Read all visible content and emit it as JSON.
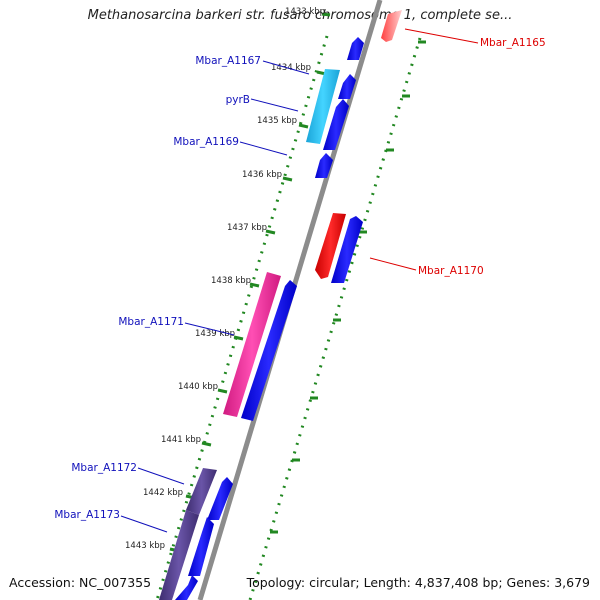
{
  "title": "Methanosarcina barkeri str. fusaro chromosome 1, complete se...",
  "footer": {
    "accession": "Accession: NC_007355",
    "summary": "Topology: circular; Length: 4,837,408 bp; Genes: 3,679"
  },
  "scale": {
    "unit": "kbp",
    "ticks": [
      "1433 kbp",
      "1434 kbp",
      "1435 kbp",
      "1436 kbp",
      "1437 kbp",
      "1438 kbp",
      "1439 kbp",
      "1440 kbp",
      "1441 kbp",
      "1442 kbp",
      "1443 kbp"
    ]
  },
  "genes": [
    {
      "name": "Mbar_A1165",
      "color": "#dd0000"
    },
    {
      "name": "Mbar_A1167",
      "color": "#1111bb"
    },
    {
      "name": "pyrB",
      "color": "#1111bb"
    },
    {
      "name": "Mbar_A1169",
      "color": "#1111bb"
    },
    {
      "name": "Mbar_A1170",
      "color": "#dd0000"
    },
    {
      "name": "Mbar_A1171",
      "color": "#1111bb"
    },
    {
      "name": "Mbar_A1172",
      "color": "#1111bb"
    },
    {
      "name": "Mbar_A1173",
      "color": "#1111bb"
    }
  ],
  "colors": {
    "backbone": "#8c8c8c",
    "cds_forward": "#0000ee",
    "cds_reverse": "#ee0000",
    "gene_cyan": "#22bbee",
    "gene_pink": "#ee2299",
    "gene_purple": "#55408e",
    "gc_dots": "#228822"
  }
}
